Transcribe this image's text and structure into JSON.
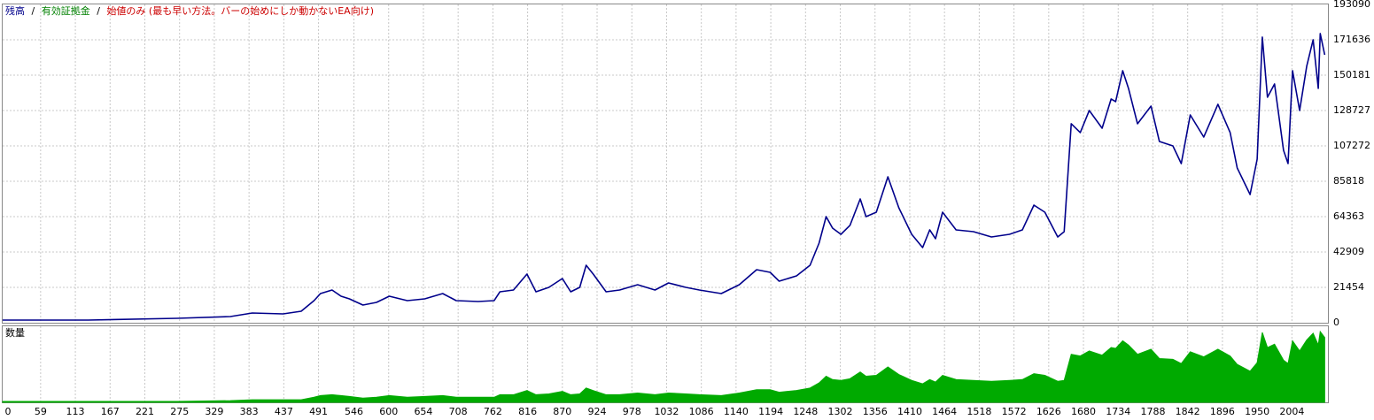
{
  "chart_data": {
    "type": "line",
    "legend": [
      {
        "name": "残高",
        "color": "#00008b"
      },
      {
        "name": "有効証拠金",
        "color": "#008000"
      },
      {
        "name": "始値のみ (最も早い方法。バーの始めにしか動かないEA向け)",
        "color": "#cc0000"
      }
    ],
    "separator": "/",
    "volume_label": "数量",
    "xlim": [
      0,
      2060
    ],
    "xticks": [
      0,
      59,
      113,
      167,
      221,
      275,
      329,
      383,
      437,
      491,
      546,
      600,
      654,
      708,
      762,
      816,
      870,
      924,
      978,
      1032,
      1086,
      1140,
      1194,
      1248,
      1302,
      1356,
      1410,
      1464,
      1518,
      1572,
      1626,
      1680,
      1734,
      1788,
      1842,
      1896,
      1950,
      2004
    ],
    "ylim": [
      0,
      193090
    ],
    "yticks": [
      0,
      21454,
      42909,
      64363,
      85818,
      107272,
      128727,
      150181,
      171636,
      193090
    ],
    "grid": true,
    "x": [
      0,
      133,
      271,
      354,
      388,
      436,
      464,
      484,
      494,
      512,
      526,
      539,
      560,
      581,
      601,
      629,
      656,
      684,
      705,
      739,
      764,
      773,
      794,
      815,
      829,
      849,
      870,
      883,
      897,
      907,
      918,
      938,
      959,
      987,
      1014,
      1035,
      1062,
      1083,
      1117,
      1145,
      1172,
      1193,
      1207,
      1234,
      1255,
      1269,
      1280,
      1290,
      1303,
      1317,
      1333,
      1342,
      1358,
      1376,
      1393,
      1413,
      1430,
      1441,
      1450,
      1461,
      1482,
      1509,
      1537,
      1565,
      1585,
      1603,
      1620,
      1640,
      1650,
      1661,
      1675,
      1689,
      1709,
      1723,
      1730,
      1741,
      1750,
      1764,
      1785,
      1798,
      1819,
      1832,
      1846,
      1867,
      1889,
      1908,
      1919,
      1939,
      1950,
      1958,
      1966,
      1977,
      1991,
      1998,
      2005,
      2016,
      2027,
      2037,
      2045,
      2048,
      2055
    ],
    "series": [
      {
        "name": "残高",
        "color": "#00008b",
        "values": [
          1609,
          1609,
          2682,
          3755,
          5900,
          5364,
          6973,
          13410,
          17701,
          19847,
          16092,
          14483,
          10728,
          12337,
          16092,
          13410,
          14483,
          17701,
          13410,
          12874,
          13410,
          18774,
          19847,
          29502,
          18774,
          21456,
          26820,
          18774,
          21456,
          34866,
          29502,
          18774,
          19847,
          23065,
          19847,
          24138,
          21456,
          19847,
          17701,
          23065,
          32184,
          30575,
          25211,
          28429,
          34866,
          48276,
          64368,
          57395,
          53640,
          59004,
          75096,
          64368,
          67050,
          88506,
          69732,
          53640,
          45594,
          56322,
          50958,
          67050,
          56322,
          55249,
          52031,
          53640,
          56322,
          71341,
          67050,
          52031,
          55249,
          120690,
          115326,
          128736,
          118008,
          135709,
          134100,
          152874,
          142146,
          120690,
          131418,
          109962,
          107280,
          96552,
          126054,
          112644,
          132491,
          115326,
          93870,
          77778,
          99234,
          173257,
          136782,
          144828,
          104598,
          96552,
          152874,
          128736,
          155556,
          171648,
          142146,
          175403,
          162529
        ]
      },
      {
        "name": "数量",
        "color": "#00aa00",
        "values": [
          1,
          1,
          1,
          2,
          3,
          3,
          3,
          6,
          8,
          9,
          8,
          7,
          5,
          6,
          8,
          6,
          7,
          8,
          6,
          6,
          6,
          9,
          9,
          14,
          9,
          10,
          13,
          9,
          10,
          17,
          14,
          9,
          9,
          11,
          9,
          11,
          10,
          9,
          8,
          11,
          15,
          15,
          12,
          14,
          17,
          23,
          31,
          27,
          26,
          28,
          36,
          31,
          32,
          42,
          33,
          26,
          22,
          27,
          24,
          32,
          27,
          26,
          25,
          26,
          27,
          34,
          32,
          25,
          26,
          57,
          55,
          61,
          56,
          65,
          64,
          73,
          68,
          57,
          63,
          52,
          51,
          46,
          60,
          54,
          63,
          55,
          45,
          37,
          47,
          83,
          65,
          69,
          50,
          46,
          73,
          61,
          74,
          82,
          68,
          84,
          77
        ]
      }
    ]
  }
}
